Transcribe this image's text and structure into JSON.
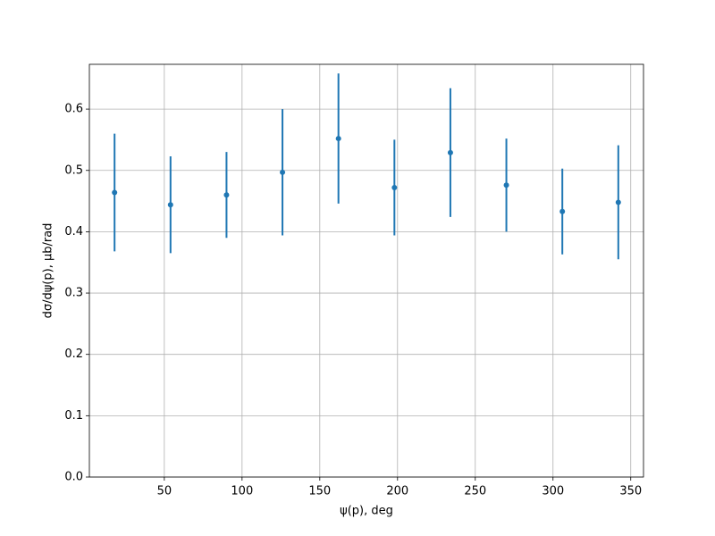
{
  "chart_data": {
    "type": "errorbar",
    "xlabel": "ψ(p), deg",
    "ylabel": "dσ/dψ(p), μb/rad",
    "x": [
      18,
      54,
      90,
      126,
      162,
      198,
      234,
      270,
      306,
      342
    ],
    "series": [
      {
        "color": "#1f77b4",
        "values": [
          0.464,
          0.444,
          0.46,
          0.497,
          0.552,
          0.472,
          0.529,
          0.476,
          0.433,
          0.448
        ],
        "errors": [
          0.096,
          0.079,
          0.07,
          0.103,
          0.106,
          0.078,
          0.105,
          0.076,
          0.07,
          0.093
        ]
      }
    ],
    "xlim": [
      1.8,
      358.2
    ],
    "ylim": [
      0,
      0.673
    ],
    "xticks": [
      50,
      100,
      150,
      200,
      250,
      300,
      350
    ],
    "yticks": [
      {
        "value": 0,
        "label": "0.0"
      },
      0.1,
      0.2,
      0.3,
      0.4,
      0.5,
      0.6
    ],
    "grid": true
  }
}
